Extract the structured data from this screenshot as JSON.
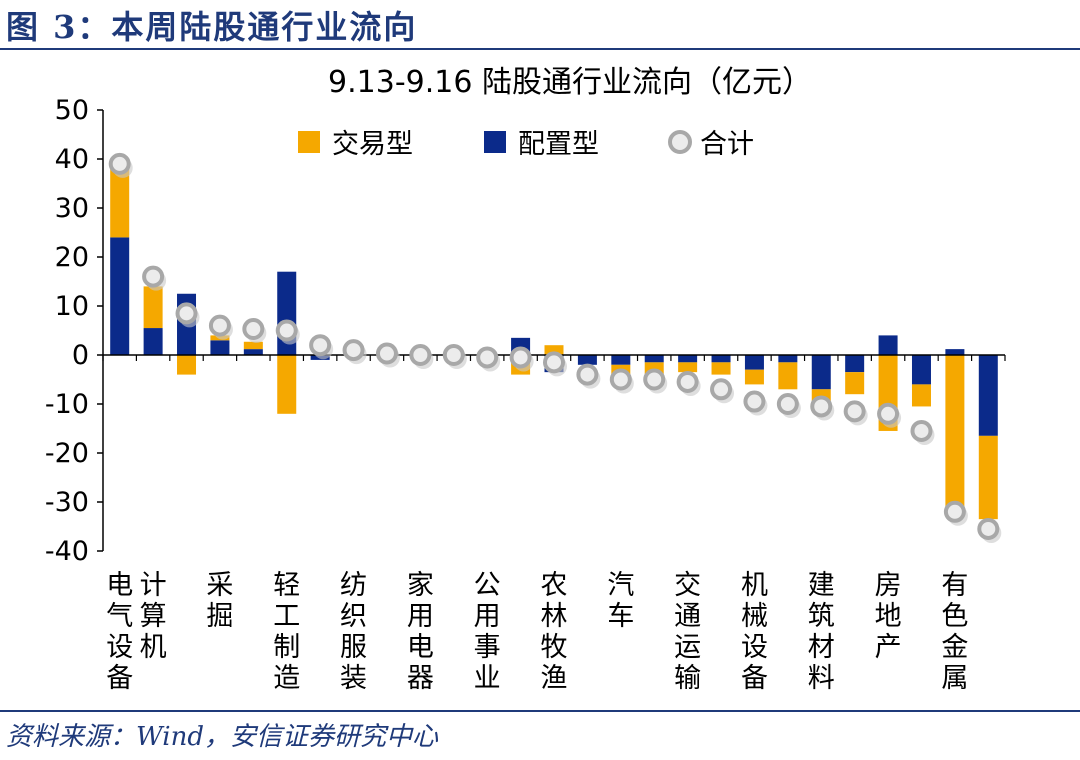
{
  "figure": {
    "title": "图 3：本周陆股通行业流向",
    "source": "资料来源：Wind，安信证券研究中心"
  },
  "colors": {
    "trade": "#f5a800",
    "config": "#0b2a8a",
    "total_fill": "#ececec",
    "total_stroke": "#a8a8a8",
    "title_blue": "#1f3a7a"
  },
  "chart_data": {
    "type": "bar",
    "title": "9.13-9.16 陆股通行业流向（亿元）",
    "ylim": [
      -40,
      50
    ],
    "yticks": [
      "50",
      "40",
      "30",
      "20",
      "10",
      "0",
      "-10",
      "-20",
      "-30",
      "-40"
    ],
    "legend": {
      "placement": "top",
      "items": [
        "交易型",
        "配置型",
        "合计"
      ]
    },
    "categories": [
      "电气设备",
      "计算机",
      "",
      "采掘",
      "",
      "轻工制造",
      "",
      "纺织服装",
      "",
      "家用电器",
      "",
      "公用事业",
      "",
      "农林牧渔",
      "",
      "汽车",
      "",
      "交通运输",
      "",
      "机械设备",
      "",
      "建筑材料",
      "",
      "房地产",
      "",
      "有色金属",
      ""
    ],
    "series": [
      {
        "name": "交易型",
        "values": [
          15,
          8.5,
          -4,
          1,
          1.5,
          -12,
          0,
          0.5,
          0,
          0,
          0,
          0,
          -4,
          2,
          0,
          -3,
          -3,
          -2,
          -2.5,
          -3,
          -5.5,
          -3,
          -4.5,
          -15.5,
          -4.5,
          -31,
          -17
        ]
      },
      {
        "name": "配置型",
        "values": [
          24,
          5.5,
          12.5,
          3,
          1.2,
          17,
          -1,
          0,
          0,
          0,
          0,
          0,
          3.5,
          -3.5,
          -2,
          -2,
          -1.5,
          -1.5,
          -1.5,
          -3,
          -1.5,
          -7,
          -3.5,
          4,
          -6,
          1.2,
          -16.5
        ]
      },
      {
        "name": "合计",
        "values": [
          39,
          16,
          8.5,
          6,
          5.3,
          5,
          2,
          1,
          0.3,
          0,
          0,
          -0.5,
          -0.5,
          -1.5,
          -4,
          -5,
          -5,
          -5.5,
          -7,
          -9.5,
          -10,
          -10.5,
          -11.5,
          -12,
          -15.5,
          -32,
          -35.5
        ]
      }
    ],
    "grid": false
  }
}
